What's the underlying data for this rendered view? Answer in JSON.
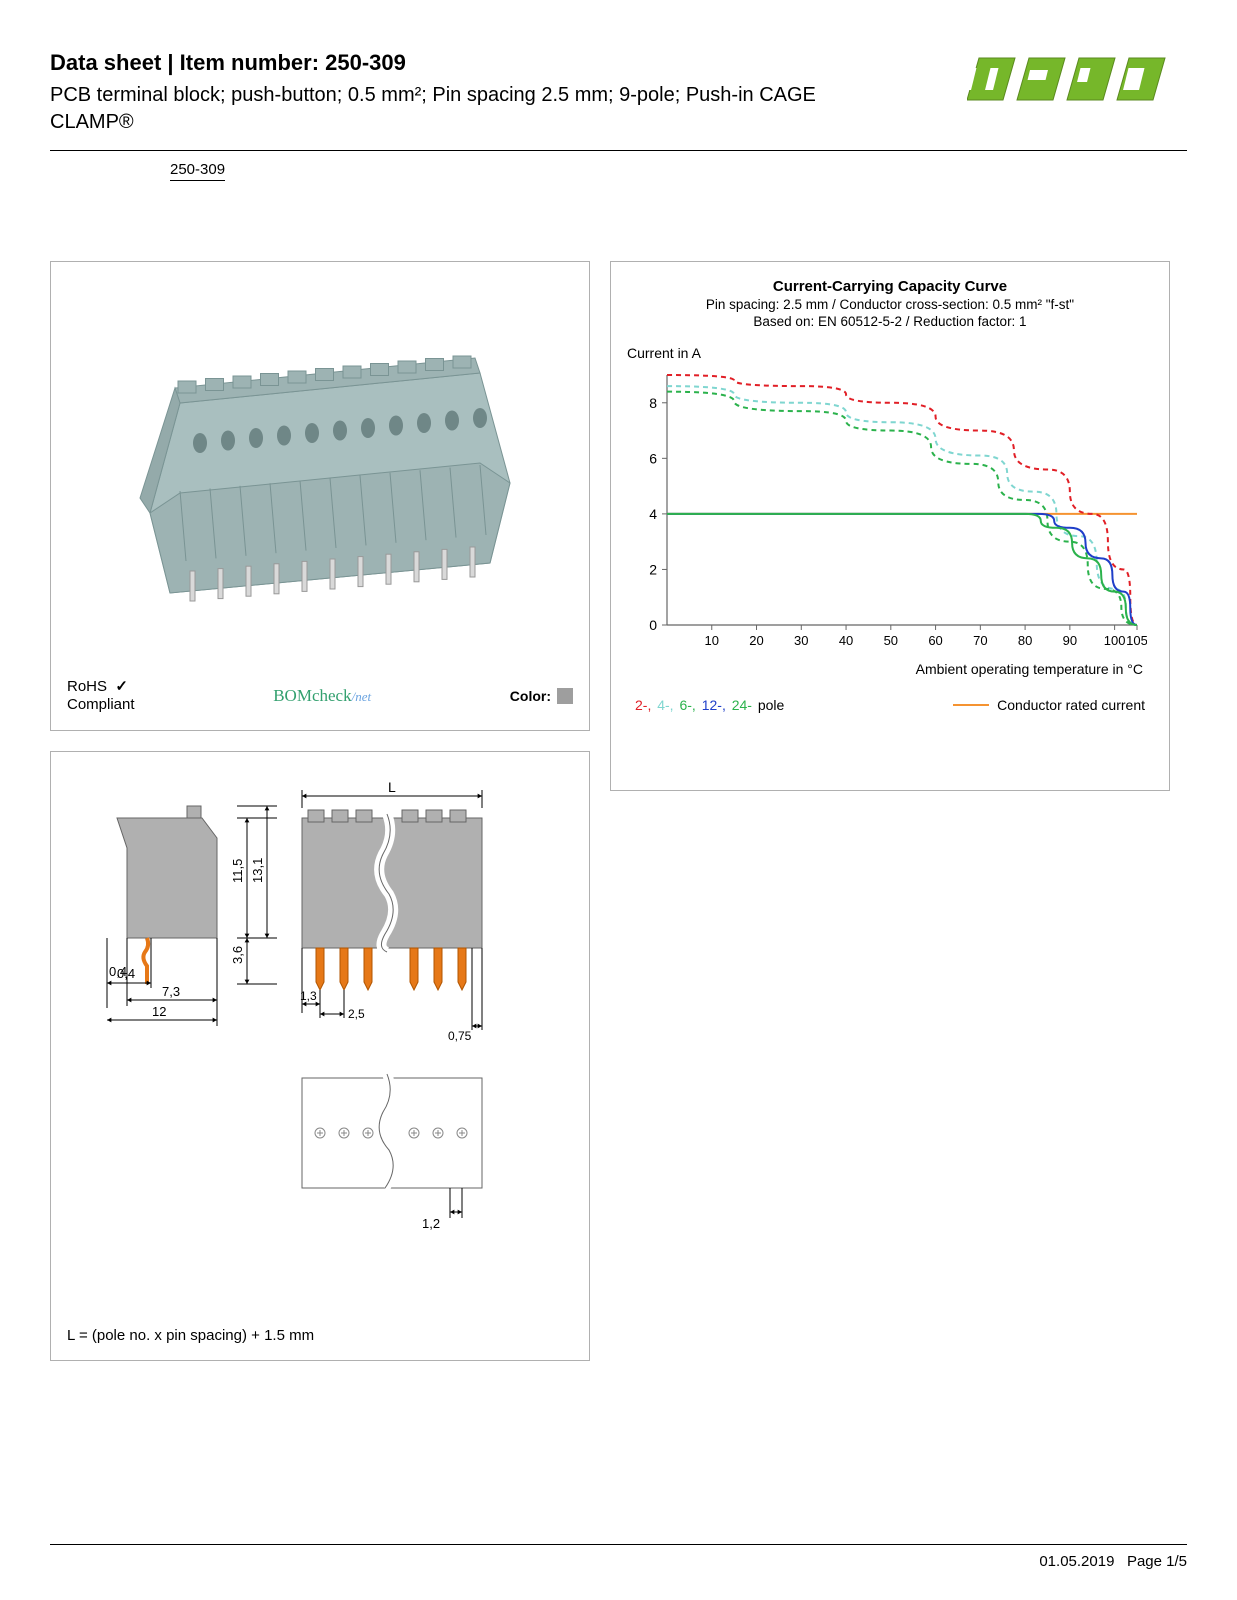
{
  "header": {
    "title_prefix": "Data sheet",
    "title_sep": "  |  ",
    "title_item_label": "Item number: ",
    "item_number": "250-309",
    "description": "PCB terminal block; push-button; 0.5 mm²; Pin spacing 2.5 mm; 9-pole; Push-in CAGE CLAMP®",
    "logo_color": "#76b72a"
  },
  "item_link": "250-309",
  "product_panel": {
    "block_color": "#a9bfbf",
    "pin_color": "#d9d9d9",
    "rohs_line1": "RoHS",
    "rohs_line2": "Compliant",
    "check_color": "#000000",
    "bomcheck_text": "BOMcheck",
    "bomcheck_net": "/net",
    "color_label": "Color:",
    "swatch_color": "#9e9e9e"
  },
  "chart": {
    "title": "Current-Carrying Capacity Curve",
    "sub1": "Pin spacing: 2.5 mm / Conductor cross-section: 0.5 mm² \"f-st\"",
    "sub2": "Based on: EN 60512-5-2 / Reduction factor: 1",
    "y_label": "Current in A",
    "x_label": "Ambient operating temperature in °C",
    "x_ticks": [
      10,
      20,
      30,
      40,
      50,
      60,
      70,
      80,
      90,
      100,
      105
    ],
    "y_ticks": [
      0,
      2,
      4,
      6,
      8
    ],
    "y_max": 9,
    "grid_color": "#666666",
    "rated_line_color": "#f59331",
    "rated_current": 4,
    "series": [
      {
        "label": "2-",
        "color": "#e11f26",
        "dash": true,
        "points": [
          [
            0,
            9
          ],
          [
            30,
            8.6
          ],
          [
            50,
            8.0
          ],
          [
            70,
            7.0
          ],
          [
            85,
            5.6
          ],
          [
            95,
            4.0
          ],
          [
            102,
            2.0
          ],
          [
            105,
            0
          ]
        ]
      },
      {
        "label": "4-",
        "color": "#7fd6d0",
        "dash": true,
        "points": [
          [
            0,
            8.6
          ],
          [
            30,
            8.0
          ],
          [
            50,
            7.3
          ],
          [
            70,
            6.1
          ],
          [
            82,
            4.8
          ],
          [
            92,
            3.2
          ],
          [
            100,
            1.3
          ],
          [
            105,
            0
          ]
        ]
      },
      {
        "label": "6-",
        "color": "#2bb24c",
        "dash": true,
        "points": [
          [
            0,
            8.4
          ],
          [
            30,
            7.7
          ],
          [
            50,
            7.0
          ],
          [
            68,
            5.8
          ],
          [
            80,
            4.5
          ],
          [
            90,
            3.0
          ],
          [
            98,
            1.3
          ],
          [
            105,
            0
          ]
        ]
      },
      {
        "label": "12-",
        "color": "#1f3fc9",
        "dash": false,
        "points": [
          [
            0,
            4.0
          ],
          [
            50,
            4.0
          ],
          [
            70,
            4.0
          ],
          [
            83,
            4.0
          ],
          [
            90,
            3.5
          ],
          [
            97,
            2.4
          ],
          [
            102,
            1.2
          ],
          [
            105,
            0
          ]
        ]
      },
      {
        "label": "24-",
        "color": "#2bb24c",
        "dash": false,
        "points": [
          [
            0,
            4.0
          ],
          [
            50,
            4.0
          ],
          [
            68,
            4.0
          ],
          [
            80,
            4.0
          ],
          [
            87,
            3.5
          ],
          [
            94,
            2.4
          ],
          [
            100,
            1.2
          ],
          [
            105,
            0
          ]
        ]
      }
    ],
    "legend_pole_suffix": " pole",
    "legend_rated": "Conductor rated current"
  },
  "dim_panel": {
    "block_fill": "#b0b0b0",
    "pin_fill": "#e67817",
    "caption": "L = (pole no. x pin spacing) + 1.5 mm",
    "dims": {
      "L": "L",
      "h1": "11,5",
      "h2": "13,1",
      "h3": "3,6",
      "t": "0,4",
      "d1": "7,3",
      "d2": "12",
      "p1": "1,3",
      "p2": "2,5",
      "p3": "0,75",
      "hole": "1,2"
    }
  },
  "footer": {
    "date": "01.05.2019",
    "page": "Page 1/5"
  }
}
